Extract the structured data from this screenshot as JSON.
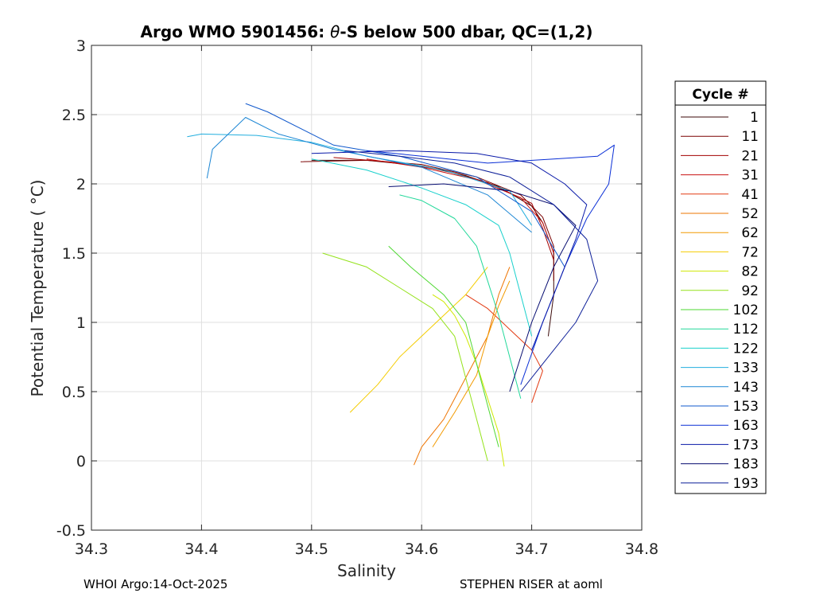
{
  "chart_data": {
    "type": "line",
    "title_prefix": "Argo WMO 5901456: ",
    "title_theta": "θ",
    "title_suffix": "-S below 500 dbar,  QC=(1,2)",
    "xlabel": "Salinity",
    "ylabel": "Potential Temperature ( °C)",
    "xlim": [
      34.3,
      34.8
    ],
    "ylim": [
      -0.5,
      3
    ],
    "x_ticks": [
      "34.3",
      "34.4",
      "34.5",
      "34.6",
      "34.7",
      "34.8"
    ],
    "y_ticks": [
      "-0.5",
      "0",
      "0.5",
      "1",
      "1.5",
      "2",
      "2.5",
      "3"
    ],
    "grid": true,
    "legend": {
      "title": "Cycle #",
      "placement": "right",
      "entries": [
        "1",
        "11",
        "21",
        "31",
        "41",
        "52",
        "62",
        "72",
        "82",
        "92",
        "102",
        "112",
        "122",
        "133",
        "143",
        "153",
        "163",
        "173",
        "183",
        "193"
      ]
    },
    "series": [
      {
        "name": "1",
        "color": "#3b0a0a",
        "x": [
          34.5,
          34.55,
          34.6,
          34.64,
          34.67,
          34.7,
          34.71,
          34.72,
          34.72,
          34.715
        ],
        "y": [
          2.17,
          2.17,
          2.13,
          2.06,
          1.98,
          1.84,
          1.72,
          1.5,
          1.2,
          0.9
        ]
      },
      {
        "name": "11",
        "color": "#7a0000",
        "x": [
          34.49,
          34.55,
          34.6,
          34.65,
          34.69,
          34.71,
          34.72,
          34.72
        ],
        "y": [
          2.16,
          2.17,
          2.14,
          2.05,
          1.92,
          1.76,
          1.55,
          1.3
        ]
      },
      {
        "name": "21",
        "color": "#a30000",
        "x": [
          34.52,
          34.57,
          34.62,
          34.66,
          34.7,
          34.71,
          34.72
        ],
        "y": [
          2.19,
          2.16,
          2.1,
          2.01,
          1.86,
          1.68,
          1.45
        ]
      },
      {
        "name": "31",
        "color": "#c81010",
        "x": [
          34.55,
          34.6,
          34.65,
          34.69,
          34.71,
          34.72
        ],
        "y": [
          2.18,
          2.12,
          2.03,
          1.9,
          1.72,
          1.5
        ]
      },
      {
        "name": "41",
        "color": "#e23a12",
        "x": [
          34.64,
          34.66,
          34.68,
          34.7,
          34.71,
          34.7
        ],
        "y": [
          1.2,
          1.1,
          0.95,
          0.8,
          0.65,
          0.42
        ]
      },
      {
        "name": "52",
        "color": "#ee7400",
        "x": [
          34.593,
          34.6,
          34.62,
          34.64,
          34.66,
          34.67,
          34.68
        ],
        "y": [
          -0.03,
          0.1,
          0.3,
          0.6,
          0.9,
          1.2,
          1.4
        ]
      },
      {
        "name": "62",
        "color": "#f29a00",
        "x": [
          34.61,
          34.63,
          34.65,
          34.66,
          34.67,
          34.68
        ],
        "y": [
          0.1,
          0.35,
          0.62,
          0.9,
          1.12,
          1.3
        ]
      },
      {
        "name": "72",
        "color": "#f4cc00",
        "x": [
          34.535,
          34.56,
          34.58,
          34.6,
          34.62,
          34.64,
          34.65,
          34.66
        ],
        "y": [
          0.35,
          0.55,
          0.75,
          0.9,
          1.05,
          1.2,
          1.3,
          1.4
        ]
      },
      {
        "name": "82",
        "color": "#cfe800",
        "x": [
          34.675,
          34.67,
          34.66,
          34.65,
          34.64,
          34.63,
          34.62,
          34.61
        ],
        "y": [
          -0.04,
          0.2,
          0.45,
          0.7,
          0.9,
          1.05,
          1.15,
          1.2
        ]
      },
      {
        "name": "92",
        "color": "#94e21a",
        "x": [
          34.66,
          34.65,
          34.64,
          34.63,
          34.61,
          34.58,
          34.55,
          34.51
        ],
        "y": [
          0.0,
          0.3,
          0.6,
          0.9,
          1.1,
          1.25,
          1.4,
          1.5
        ]
      },
      {
        "name": "102",
        "color": "#4ed832",
        "x": [
          34.67,
          34.66,
          34.65,
          34.64,
          34.62,
          34.59,
          34.57
        ],
        "y": [
          0.1,
          0.4,
          0.7,
          1.0,
          1.2,
          1.4,
          1.55
        ]
      },
      {
        "name": "112",
        "color": "#22d89a",
        "x": [
          34.69,
          34.68,
          34.67,
          34.66,
          34.65,
          34.63,
          34.6,
          34.58
        ],
        "y": [
          0.45,
          0.75,
          1.05,
          1.3,
          1.55,
          1.75,
          1.88,
          1.92
        ]
      },
      {
        "name": "122",
        "color": "#18d0cc",
        "x": [
          34.7,
          34.69,
          34.68,
          34.67,
          34.64,
          34.6,
          34.55,
          34.5
        ],
        "y": [
          0.9,
          1.2,
          1.5,
          1.7,
          1.85,
          1.97,
          2.1,
          2.18
        ]
      },
      {
        "name": "133",
        "color": "#22aede",
        "x": [
          34.7,
          34.68,
          34.62,
          34.55,
          34.5,
          34.45,
          34.4,
          34.387
        ],
        "y": [
          1.7,
          1.95,
          2.1,
          2.2,
          2.3,
          2.35,
          2.36,
          2.34
        ]
      },
      {
        "name": "143",
        "color": "#1c86d4",
        "x": [
          34.7,
          34.66,
          34.6,
          34.52,
          34.47,
          34.44,
          34.41,
          34.405
        ],
        "y": [
          1.65,
          1.92,
          2.12,
          2.25,
          2.36,
          2.48,
          2.25,
          2.04
        ]
      },
      {
        "name": "153",
        "color": "#1058cc",
        "x": [
          34.73,
          34.7,
          34.65,
          34.58,
          34.52,
          34.46,
          34.44
        ],
        "y": [
          1.4,
          1.8,
          2.05,
          2.2,
          2.28,
          2.52,
          2.58
        ]
      },
      {
        "name": "163",
        "color": "#0a2fd6",
        "x": [
          34.69,
          34.71,
          34.73,
          34.75,
          34.77,
          34.775,
          34.76,
          34.72,
          34.66,
          34.6,
          34.55
        ],
        "y": [
          0.55,
          1.0,
          1.4,
          1.75,
          2.0,
          2.28,
          2.2,
          2.18,
          2.15,
          2.2,
          2.24
        ]
      },
      {
        "name": "173",
        "color": "#0818a8",
        "x": [
          34.7,
          34.72,
          34.74,
          34.75,
          34.73,
          34.7,
          34.65,
          34.58,
          34.5
        ],
        "y": [
          0.8,
          1.2,
          1.6,
          1.85,
          2.0,
          2.15,
          2.22,
          2.24,
          2.22
        ]
      },
      {
        "name": "183",
        "color": "#060c70",
        "x": [
          34.68,
          34.7,
          34.72,
          34.74,
          34.72,
          34.68,
          34.62,
          34.57
        ],
        "y": [
          0.5,
          1.0,
          1.4,
          1.7,
          1.85,
          1.95,
          2.0,
          1.98
        ]
      },
      {
        "name": "193",
        "color": "#0c1e98",
        "x": [
          34.53,
          34.58,
          34.63,
          34.68,
          34.72,
          34.75,
          34.76,
          34.74,
          34.71,
          34.69
        ],
        "y": [
          2.24,
          2.2,
          2.15,
          2.05,
          1.85,
          1.6,
          1.3,
          1.0,
          0.7,
          0.5
        ]
      }
    ]
  },
  "footer": {
    "left": "WHOI Argo:14-Oct-2025",
    "right": "STEPHEN RISER at aoml"
  }
}
